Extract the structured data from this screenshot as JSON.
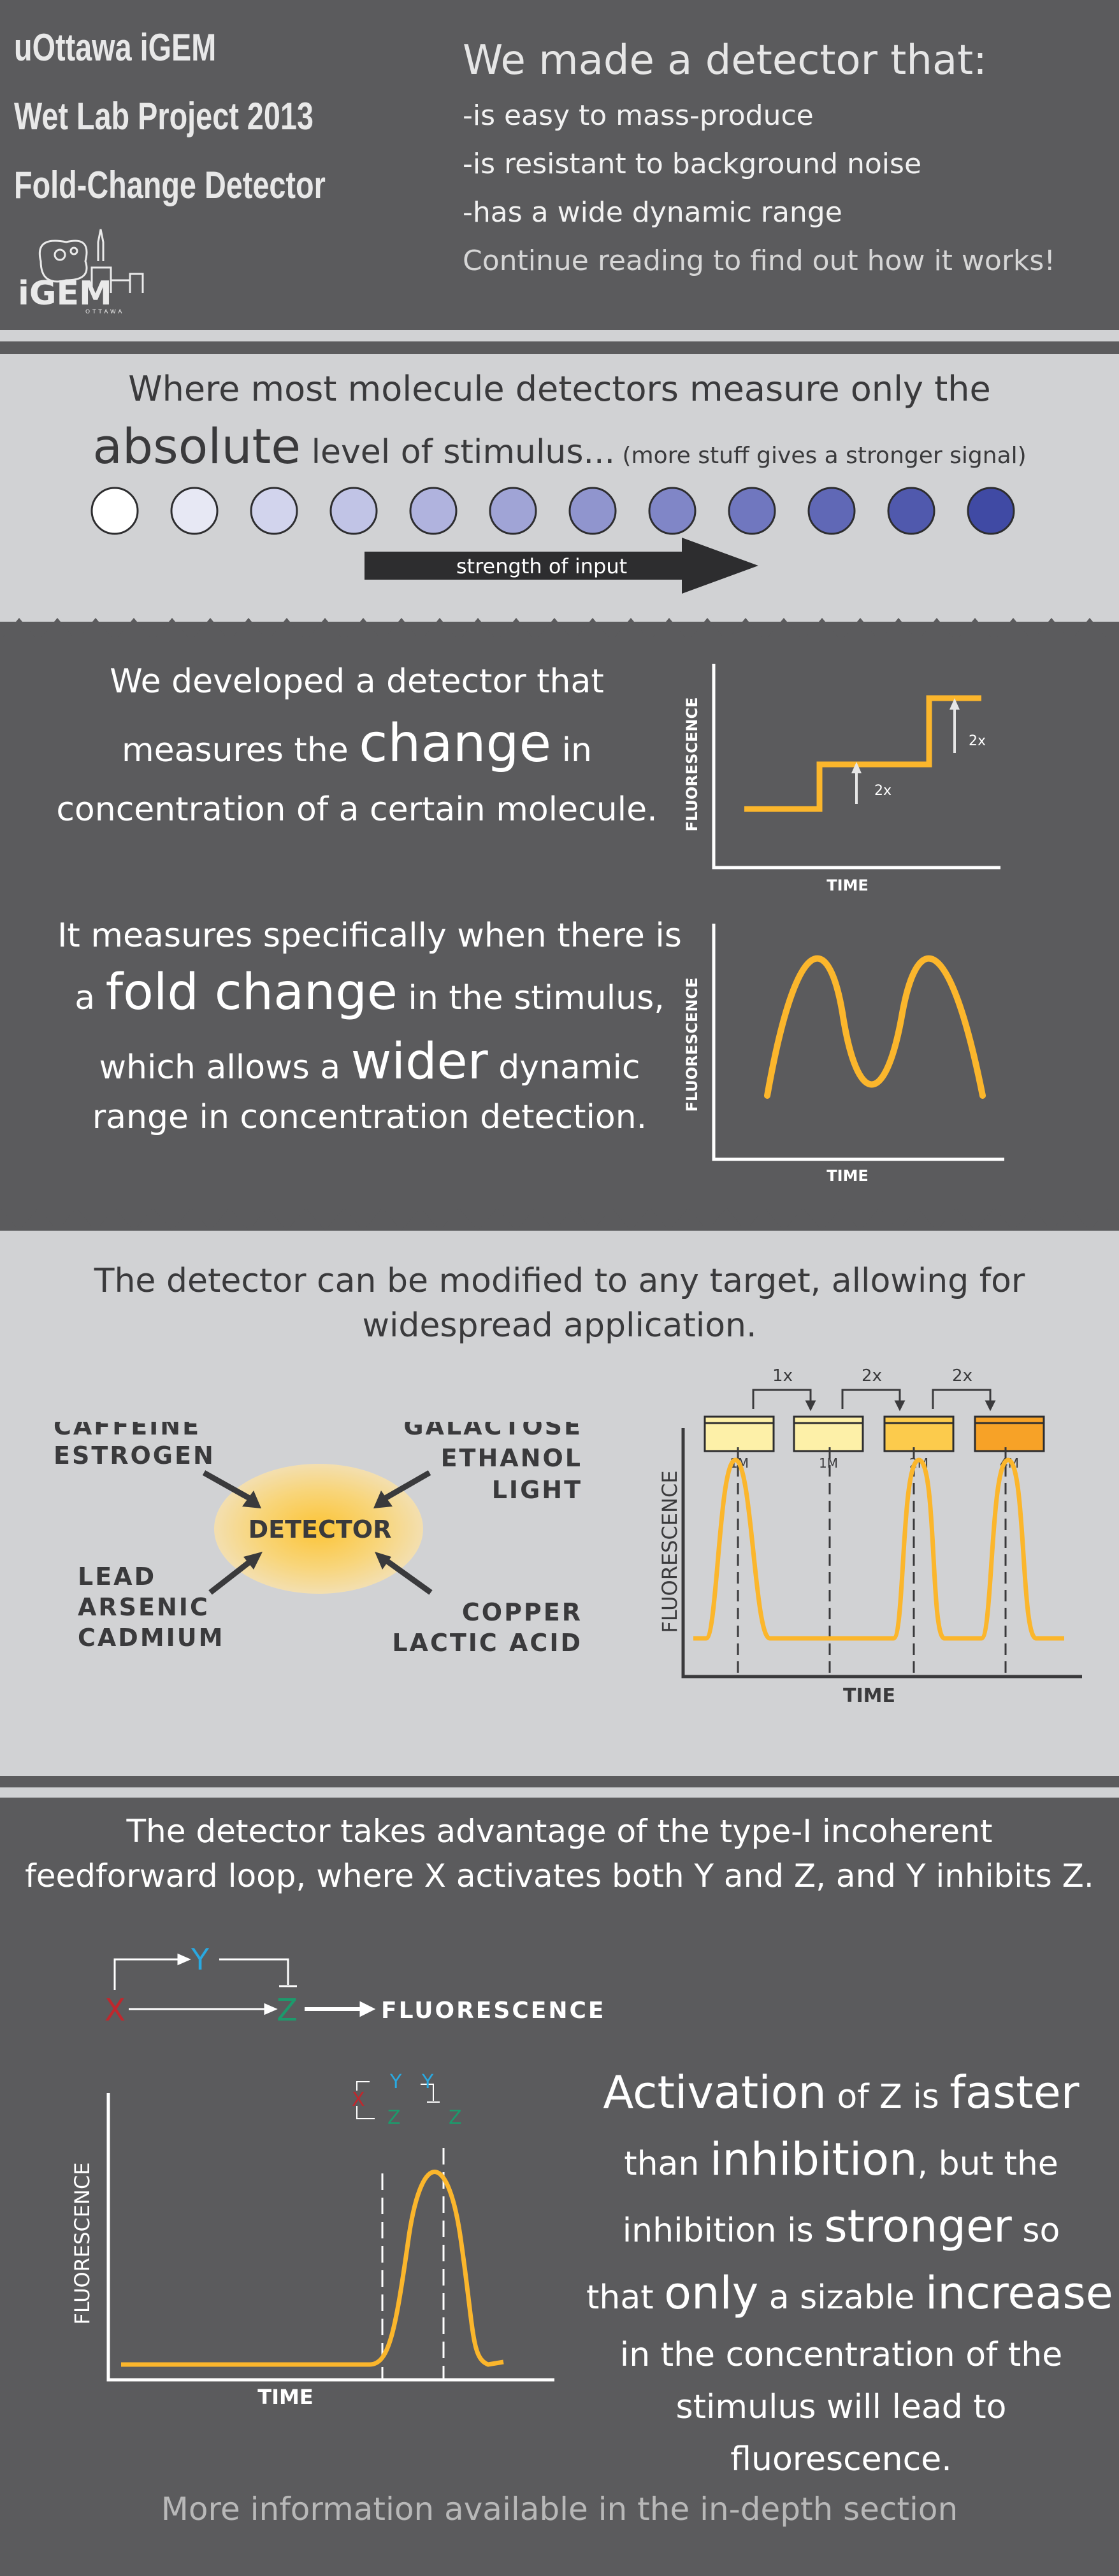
{
  "header": {
    "title_lines": [
      "uOttawa iGEM",
      "Wet Lab Project 2013",
      "Fold-Change Detector"
    ],
    "logo": {
      "letters": "iGEM",
      "subtext": "OTTAWA",
      "icon": "igem-cell-parliament-logo"
    },
    "intro_heading": "We made a detector that:",
    "intro_points": [
      "-is easy to mass-produce",
      "-is resistant to background noise",
      "-has a wide dynamic range"
    ],
    "intro_cta": "Continue reading to find out how it works!"
  },
  "absolute": {
    "line1": "Where most molecule detectors measure only the",
    "big_word": "absolute",
    "rest": " level of stimulus...",
    "aside": " (more stuff gives a stronger signal)",
    "circle_colors": [
      "#ffffff",
      "#e7e8f4",
      "#d2d4ed",
      "#c1c4e6",
      "#b0b3de",
      "#a0a4d6",
      "#9095ce",
      "#8086c7",
      "#7077bf",
      "#6068b6",
      "#5059ad",
      "#404aa4"
    ],
    "arrow_label": "strength of input"
  },
  "change": {
    "line1": "We developed a detector that",
    "line2_pre": "measures the ",
    "line2_big": "change",
    "line2_post": " in",
    "line3": "concentration of a certain molecule.",
    "graph": {
      "ylabel": "FLUORESCENCE",
      "xlabel": "TIME",
      "anno1": "2x",
      "anno2": "2x"
    }
  },
  "fold": {
    "line1": "It measures specifically when there is",
    "line2_pre": "a ",
    "line2_big": "fold change",
    "line2_post": " in the stimulus,",
    "line3_pre": "which allows a ",
    "line3_big": "wider",
    "line3_post": " dynamic",
    "line4": "range in concentration detection.",
    "graph": {
      "ylabel": "FLUORESCENCE",
      "xlabel": "TIME"
    }
  },
  "targets": {
    "heading_line1": "The detector can be modified to any target, allowing for",
    "heading_line2": "widespread application.",
    "center": "DETECTOR",
    "top_left": [
      "CAFFEINE",
      "ESTROGEN"
    ],
    "top_right": [
      "GALACTOSE",
      "ETHANOL",
      "LIGHT"
    ],
    "bottom_left": [
      "LEAD",
      "ARSENIC",
      "CADMIUM"
    ],
    "bottom_right": [
      "COPPER",
      "LACTIC ACID"
    ],
    "graph": {
      "fold_labels": [
        "1x",
        "2x",
        "2x"
      ],
      "beakers": [
        {
          "label": "1M",
          "color": "#fdf0a8"
        },
        {
          "label": "1M",
          "color": "#fdf0a8"
        },
        {
          "label": "2M",
          "color": "#fccb4c"
        },
        {
          "label": "4M",
          "color": "#f7a227"
        }
      ],
      "ylabel": "FLUORESCENCE",
      "xlabel": "TIME"
    }
  },
  "loop": {
    "heading_line1": "The detector takes advantage of the type-I incoherent",
    "heading_line2": "feedforward loop, where X activates both Y and Z, and Y inhibits Z.",
    "diagram": {
      "x": "X",
      "y": "Y",
      "z": "Z",
      "output": "FLUORESCENCE"
    },
    "graph": {
      "ylabel": "FLUORESCENCE",
      "xlabel": "TIME",
      "x": "X",
      "y": "Y",
      "z": "Z"
    },
    "text": [
      {
        "parts": [
          [
            "Activation",
            "l"
          ],
          [
            " of Z is ",
            "s"
          ],
          [
            "faster",
            "l"
          ]
        ]
      },
      {
        "parts": [
          [
            "than ",
            "s"
          ],
          [
            "inhibition",
            "l"
          ],
          [
            ", but the",
            "s"
          ]
        ]
      },
      {
        "parts": [
          [
            "inhibition is ",
            "s"
          ],
          [
            "stronger",
            "l"
          ],
          [
            " so",
            "s"
          ]
        ]
      },
      {
        "parts": [
          [
            "that ",
            "s"
          ],
          [
            "only",
            "l"
          ],
          [
            " a sizable ",
            "s"
          ],
          [
            "increase",
            "l"
          ]
        ]
      },
      {
        "parts": [
          [
            "in the concentration of the",
            "s"
          ]
        ]
      },
      {
        "parts": [
          [
            "stimulus will lead to",
            "s"
          ]
        ]
      },
      {
        "parts": [
          [
            "fluorescence.",
            "s"
          ]
        ]
      }
    ]
  },
  "footer": {
    "text": "More information available in the in-depth section"
  },
  "colors": {
    "dark": "#5b5b5d",
    "light": "#d1d2d4",
    "curve": "#fbb62c",
    "x": "#c0272d",
    "y": "#29a9e1",
    "z": "#1d9a6c"
  }
}
